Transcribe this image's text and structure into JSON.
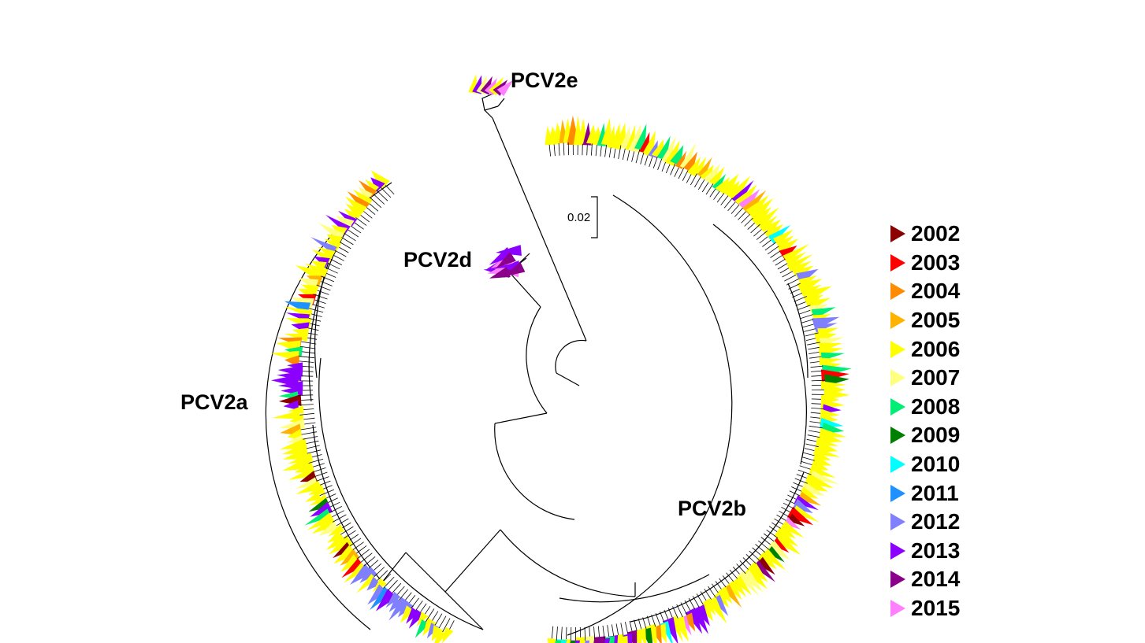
{
  "clades": [
    {
      "id": "PCV2e",
      "label": "PCV2e"
    },
    {
      "id": "PCV2d",
      "label": "PCV2d"
    },
    {
      "id": "PCV2a",
      "label": "PCV2a"
    },
    {
      "id": "PCV2b",
      "label": "PCV2b"
    }
  ],
  "scale_bar": {
    "label": "0.02"
  },
  "legend": {
    "items": [
      {
        "label": "2002",
        "color": "#8B0000"
      },
      {
        "label": "2003",
        "color": "#FF0000"
      },
      {
        "label": "2004",
        "color": "#FF8C00"
      },
      {
        "label": "2005",
        "color": "#FFB300"
      },
      {
        "label": "2006",
        "color": "#FFFF00"
      },
      {
        "label": "2007",
        "color": "#FFFF80"
      },
      {
        "label": "2008",
        "color": "#00EE76"
      },
      {
        "label": "2009",
        "color": "#008000"
      },
      {
        "label": "2010",
        "color": "#00FFFF"
      },
      {
        "label": "2011",
        "color": "#1E90FF"
      },
      {
        "label": "2012",
        "color": "#8080FF"
      },
      {
        "label": "2013",
        "color": "#8B00FF"
      },
      {
        "label": "2014",
        "color": "#8B008B"
      },
      {
        "label": "2015",
        "color": "#FF80FF"
      }
    ]
  }
}
